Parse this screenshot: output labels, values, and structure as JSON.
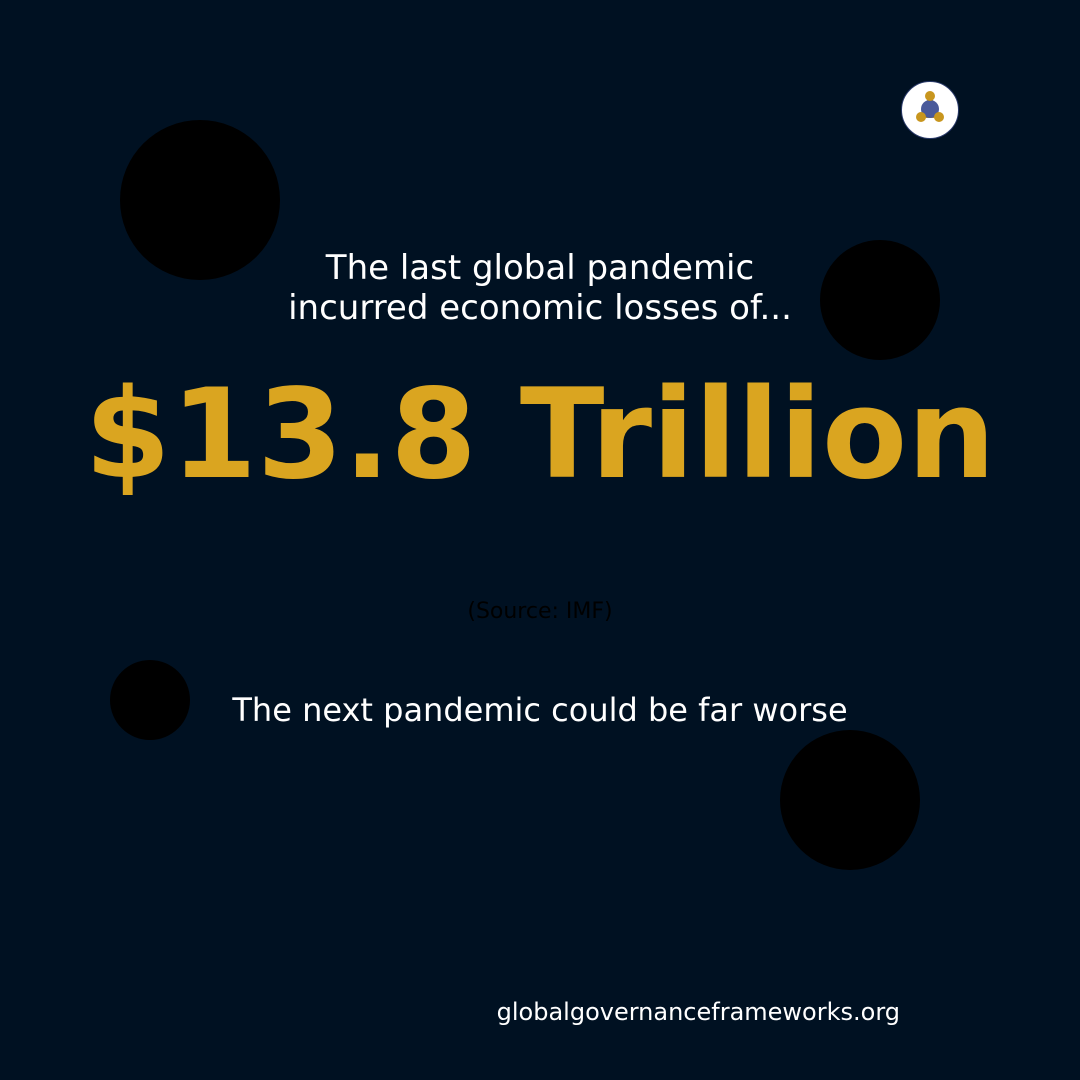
{
  "intro": {
    "line1": "The last global pandemic",
    "line2": "incurred economic losses of..."
  },
  "headline": "$13.8 Trillion",
  "source": "(Source: IMF)",
  "tagline": "The next pandemic could be far worse",
  "website": "globalgovernanceframeworks.org",
  "logo": {
    "icon": "network-people-icon"
  },
  "colors": {
    "background": "#001122",
    "accent": "#daa520",
    "text": "#ffffff",
    "blob": "#000000",
    "logo_center": "#4a5a9a"
  }
}
